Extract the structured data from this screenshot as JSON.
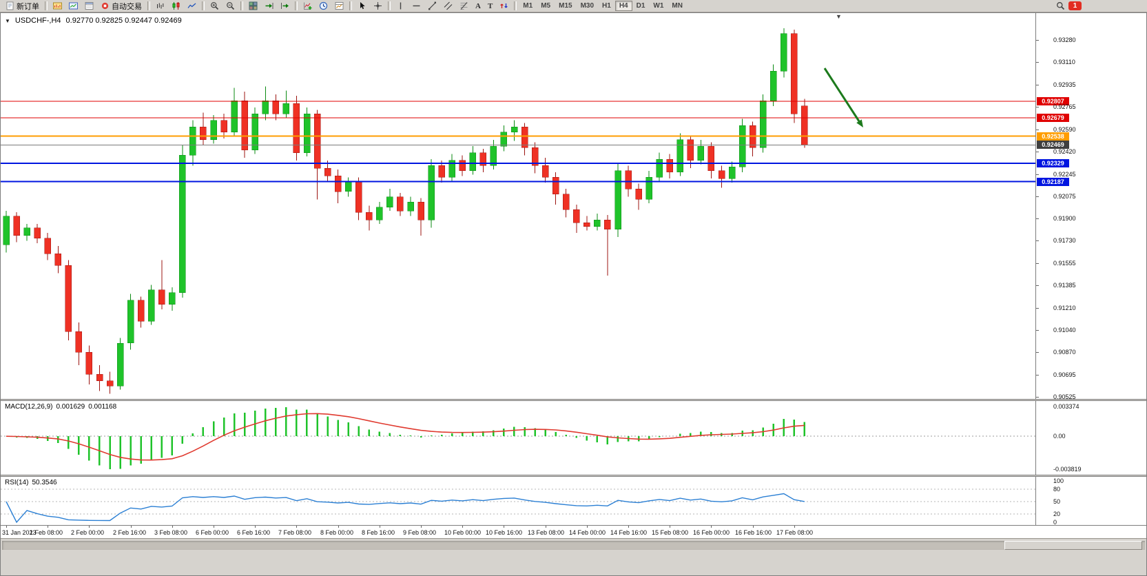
{
  "icons": {
    "dropdown": "▼",
    "shift_marker": "▼"
  },
  "toolbar": {
    "new_order_label": "新订单",
    "auto_trading_label": "自动交易",
    "text_tool_glyph": "A",
    "label_tool_glyph": "T",
    "timeframes": [
      "M1",
      "M5",
      "M15",
      "M30",
      "H1",
      "H4",
      "D1",
      "W1",
      "MN"
    ],
    "active_timeframe": "H4",
    "notification_count": "1"
  },
  "chart": {
    "title_symbol": "USDCHF-,H4",
    "title_ohlc": "0.92770 0.92825 0.92447 0.92469",
    "open": "0.92770",
    "high": "0.92825",
    "low": "0.92447",
    "close": "0.92469",
    "hlines": [
      {
        "name": "resistance-1",
        "price": 0.92807,
        "label": "0.92807",
        "color": "#e00000",
        "width": 1
      },
      {
        "name": "resistance-2",
        "price": 0.92679,
        "label": "0.92679",
        "color": "#e00000",
        "width": 1
      },
      {
        "name": "pivot-line",
        "price": 0.92538,
        "label": "0.92538",
        "color": "#ff9d00",
        "width": 2
      },
      {
        "name": "current-price",
        "price": 0.92469,
        "label": "0.92469",
        "color": "#7a7a7a",
        "width": 1,
        "tag_bg": "#3f3f3f"
      },
      {
        "name": "support-1",
        "price": 0.92329,
        "label": "0.92329",
        "color": "#0015e0",
        "width": 2
      },
      {
        "name": "support-2",
        "price": 0.92187,
        "label": "0.92187",
        "color": "#0015e0",
        "width": 2
      }
    ],
    "arrow_color": "#1c7a1c"
  },
  "chart_data": {
    "type": "candlestick",
    "symbol": "USDCHF-",
    "timeframe": "H4",
    "up_color": "#1fc32a",
    "down_color": "#ef3124",
    "price_min": 0.90525,
    "price_max": 0.9328,
    "price_axis_labels": [
      "0.93280",
      "0.93110",
      "0.92935",
      "0.92765",
      "0.92590",
      "0.92420",
      "0.92245",
      "0.92075",
      "0.91900",
      "0.91730",
      "0.91555",
      "0.91385",
      "0.91210",
      "0.91040",
      "0.90870",
      "0.90695",
      "0.90525"
    ],
    "time_axis_labels": [
      "31 Jan 2023",
      "1 Feb 08:00",
      "2 Feb 00:00",
      "2 Feb 16:00",
      "3 Feb 08:00",
      "6 Feb 00:00",
      "6 Feb 16:00",
      "7 Feb 08:00",
      "8 Feb 00:00",
      "8 Feb 16:00",
      "9 Feb 08:00",
      "10 Feb 00:00",
      "10 Feb 16:00",
      "13 Feb 08:00",
      "14 Feb 00:00",
      "14 Feb 16:00",
      "15 Feb 08:00",
      "16 Feb 00:00",
      "16 Feb 16:00",
      "17 Feb 08:00"
    ],
    "candles": [
      [
        0.917,
        0.9196,
        0.9164,
        0.9192
      ],
      [
        0.9192,
        0.9195,
        0.9172,
        0.9177
      ],
      [
        0.9177,
        0.9186,
        0.9173,
        0.9183
      ],
      [
        0.9183,
        0.9186,
        0.9171,
        0.9175
      ],
      [
        0.9175,
        0.9179,
        0.9158,
        0.9163
      ],
      [
        0.9163,
        0.9169,
        0.9148,
        0.9154
      ],
      [
        0.9154,
        0.9158,
        0.9096,
        0.9103
      ],
      [
        0.9103,
        0.911,
        0.9077,
        0.9087
      ],
      [
        0.9087,
        0.9092,
        0.9062,
        0.907
      ],
      [
        0.907,
        0.9077,
        0.9057,
        0.9065
      ],
      [
        0.9065,
        0.9072,
        0.9055,
        0.9061
      ],
      [
        0.9061,
        0.9098,
        0.9058,
        0.9094
      ],
      [
        0.9094,
        0.9132,
        0.9089,
        0.9127
      ],
      [
        0.9127,
        0.913,
        0.9106,
        0.9111
      ],
      [
        0.9111,
        0.9139,
        0.9108,
        0.9135
      ],
      [
        0.9135,
        0.9158,
        0.912,
        0.9124
      ],
      [
        0.9124,
        0.9137,
        0.9119,
        0.9133
      ],
      [
        0.9133,
        0.9247,
        0.9129,
        0.9239
      ],
      [
        0.9239,
        0.9266,
        0.9231,
        0.9261
      ],
      [
        0.9261,
        0.9272,
        0.9247,
        0.9251
      ],
      [
        0.9251,
        0.927,
        0.9248,
        0.9266
      ],
      [
        0.9266,
        0.9271,
        0.9252,
        0.9257
      ],
      [
        0.9257,
        0.9291,
        0.9254,
        0.9281
      ],
      [
        0.9281,
        0.9288,
        0.9237,
        0.9243
      ],
      [
        0.9243,
        0.9276,
        0.924,
        0.9271
      ],
      [
        0.9271,
        0.9292,
        0.9266,
        0.9281
      ],
      [
        0.9281,
        0.9286,
        0.9266,
        0.9271
      ],
      [
        0.9271,
        0.9289,
        0.9268,
        0.9279
      ],
      [
        0.9279,
        0.9285,
        0.9235,
        0.9241
      ],
      [
        0.9241,
        0.9276,
        0.9238,
        0.9271
      ],
      [
        0.9271,
        0.9274,
        0.9205,
        0.9229
      ],
      [
        0.9229,
        0.9235,
        0.9219,
        0.9223
      ],
      [
        0.9223,
        0.9228,
        0.9202,
        0.9211
      ],
      [
        0.9211,
        0.9222,
        0.9207,
        0.9219
      ],
      [
        0.9219,
        0.9222,
        0.9189,
        0.9195
      ],
      [
        0.9195,
        0.92,
        0.9181,
        0.9189
      ],
      [
        0.9189,
        0.9203,
        0.9186,
        0.9199
      ],
      [
        0.9199,
        0.9213,
        0.9196,
        0.9207
      ],
      [
        0.9207,
        0.921,
        0.9192,
        0.9196
      ],
      [
        0.9196,
        0.9207,
        0.9192,
        0.9203
      ],
      [
        0.9203,
        0.9206,
        0.9177,
        0.9189
      ],
      [
        0.9189,
        0.9236,
        0.9183,
        0.9231
      ],
      [
        0.9231,
        0.9235,
        0.9218,
        0.9222
      ],
      [
        0.9222,
        0.924,
        0.9219,
        0.9235
      ],
      [
        0.9235,
        0.9239,
        0.9223,
        0.9227
      ],
      [
        0.9227,
        0.9246,
        0.9224,
        0.9241
      ],
      [
        0.9241,
        0.9244,
        0.9226,
        0.9231
      ],
      [
        0.9231,
        0.9251,
        0.9228,
        0.9246
      ],
      [
        0.9246,
        0.9262,
        0.9242,
        0.9257
      ],
      [
        0.9257,
        0.9266,
        0.925,
        0.9261
      ],
      [
        0.9261,
        0.9264,
        0.9239,
        0.9245
      ],
      [
        0.9245,
        0.9249,
        0.9225,
        0.9231
      ],
      [
        0.9231,
        0.9237,
        0.9218,
        0.9222
      ],
      [
        0.9222,
        0.9226,
        0.9201,
        0.9209
      ],
      [
        0.9209,
        0.9213,
        0.9191,
        0.9197
      ],
      [
        0.9197,
        0.9201,
        0.9179,
        0.9187
      ],
      [
        0.9187,
        0.9192,
        0.9181,
        0.9184
      ],
      [
        0.9184,
        0.9194,
        0.9181,
        0.9189
      ],
      [
        0.9189,
        0.9193,
        0.9146,
        0.9182
      ],
      [
        0.9182,
        0.9233,
        0.9176,
        0.9227
      ],
      [
        0.9227,
        0.9231,
        0.9207,
        0.9213
      ],
      [
        0.9213,
        0.9217,
        0.9197,
        0.9205
      ],
      [
        0.9205,
        0.9227,
        0.9202,
        0.9222
      ],
      [
        0.9222,
        0.9241,
        0.9219,
        0.9236
      ],
      [
        0.9236,
        0.924,
        0.9221,
        0.9226
      ],
      [
        0.9226,
        0.9256,
        0.9223,
        0.9251
      ],
      [
        0.9251,
        0.9254,
        0.9229,
        0.9235
      ],
      [
        0.9235,
        0.9251,
        0.9232,
        0.9246
      ],
      [
        0.9246,
        0.9249,
        0.9221,
        0.9227
      ],
      [
        0.9227,
        0.9231,
        0.9214,
        0.9221
      ],
      [
        0.9221,
        0.9234,
        0.9218,
        0.923
      ],
      [
        0.923,
        0.9267,
        0.9226,
        0.9262
      ],
      [
        0.9262,
        0.9265,
        0.9238,
        0.9245
      ],
      [
        0.9245,
        0.9286,
        0.9241,
        0.9281
      ],
      [
        0.9281,
        0.9309,
        0.9277,
        0.9304
      ],
      [
        0.9304,
        0.9337,
        0.9299,
        0.9333
      ],
      [
        0.9333,
        0.9336,
        0.9264,
        0.9271
      ],
      [
        0.9277,
        0.92825,
        0.92447,
        0.92469
      ]
    ]
  },
  "macd": {
    "label": "MACD(12,26,9)",
    "params": [
      12,
      26,
      9
    ],
    "value_main": "0.001629",
    "value_signal": "0.001168",
    "axis_labels": [
      "0.003374",
      "0.00",
      "-0.003819"
    ],
    "axis_max": 0.003374,
    "axis_min": -0.003819,
    "histogram_color": "#1fc32a",
    "signal_color": "#e03a2f"
  },
  "rsi": {
    "label": "RSI(14)",
    "period": 14,
    "value": "50.3546",
    "axis_labels": [
      "100",
      "80",
      "50",
      "20",
      "0"
    ],
    "levels": [
      80,
      50,
      20
    ],
    "line_color": "#2a7fd4"
  }
}
